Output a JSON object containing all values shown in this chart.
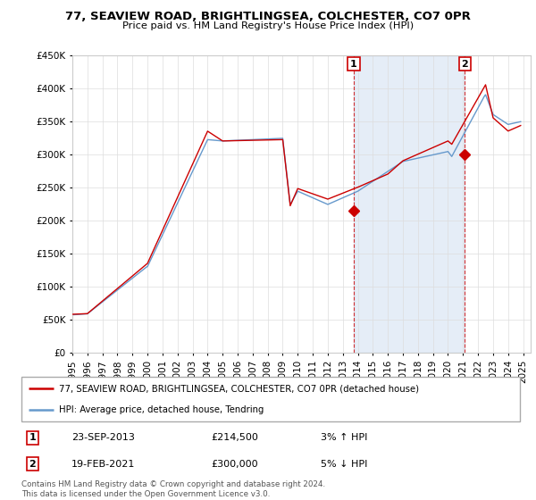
{
  "title": "77, SEAVIEW ROAD, BRIGHTLINGSEA, COLCHESTER, CO7 0PR",
  "subtitle": "Price paid vs. HM Land Registry's House Price Index (HPI)",
  "property_label": "77, SEAVIEW ROAD, BRIGHTLINGSEA, COLCHESTER, CO7 0PR (detached house)",
  "hpi_label": "HPI: Average price, detached house, Tendring",
  "footnote": "Contains HM Land Registry data © Crown copyright and database right 2024.\nThis data is licensed under the Open Government Licence v3.0.",
  "transaction1_date": "23-SEP-2013",
  "transaction1_price": "£214,500",
  "transaction1_hpi": "3% ↑ HPI",
  "transaction2_date": "19-FEB-2021",
  "transaction2_price": "£300,000",
  "transaction2_hpi": "5% ↓ HPI",
  "property_color": "#cc0000",
  "hpi_color": "#6699cc",
  "ylim": [
    0,
    450000
  ],
  "yticks": [
    0,
    50000,
    100000,
    150000,
    200000,
    250000,
    300000,
    350000,
    400000,
    450000
  ],
  "xlim_start": 1995.0,
  "xlim_end": 2025.5,
  "transaction1_x": 2013.73,
  "transaction1_y": 214500,
  "transaction2_x": 2021.12,
  "transaction2_y": 300000
}
